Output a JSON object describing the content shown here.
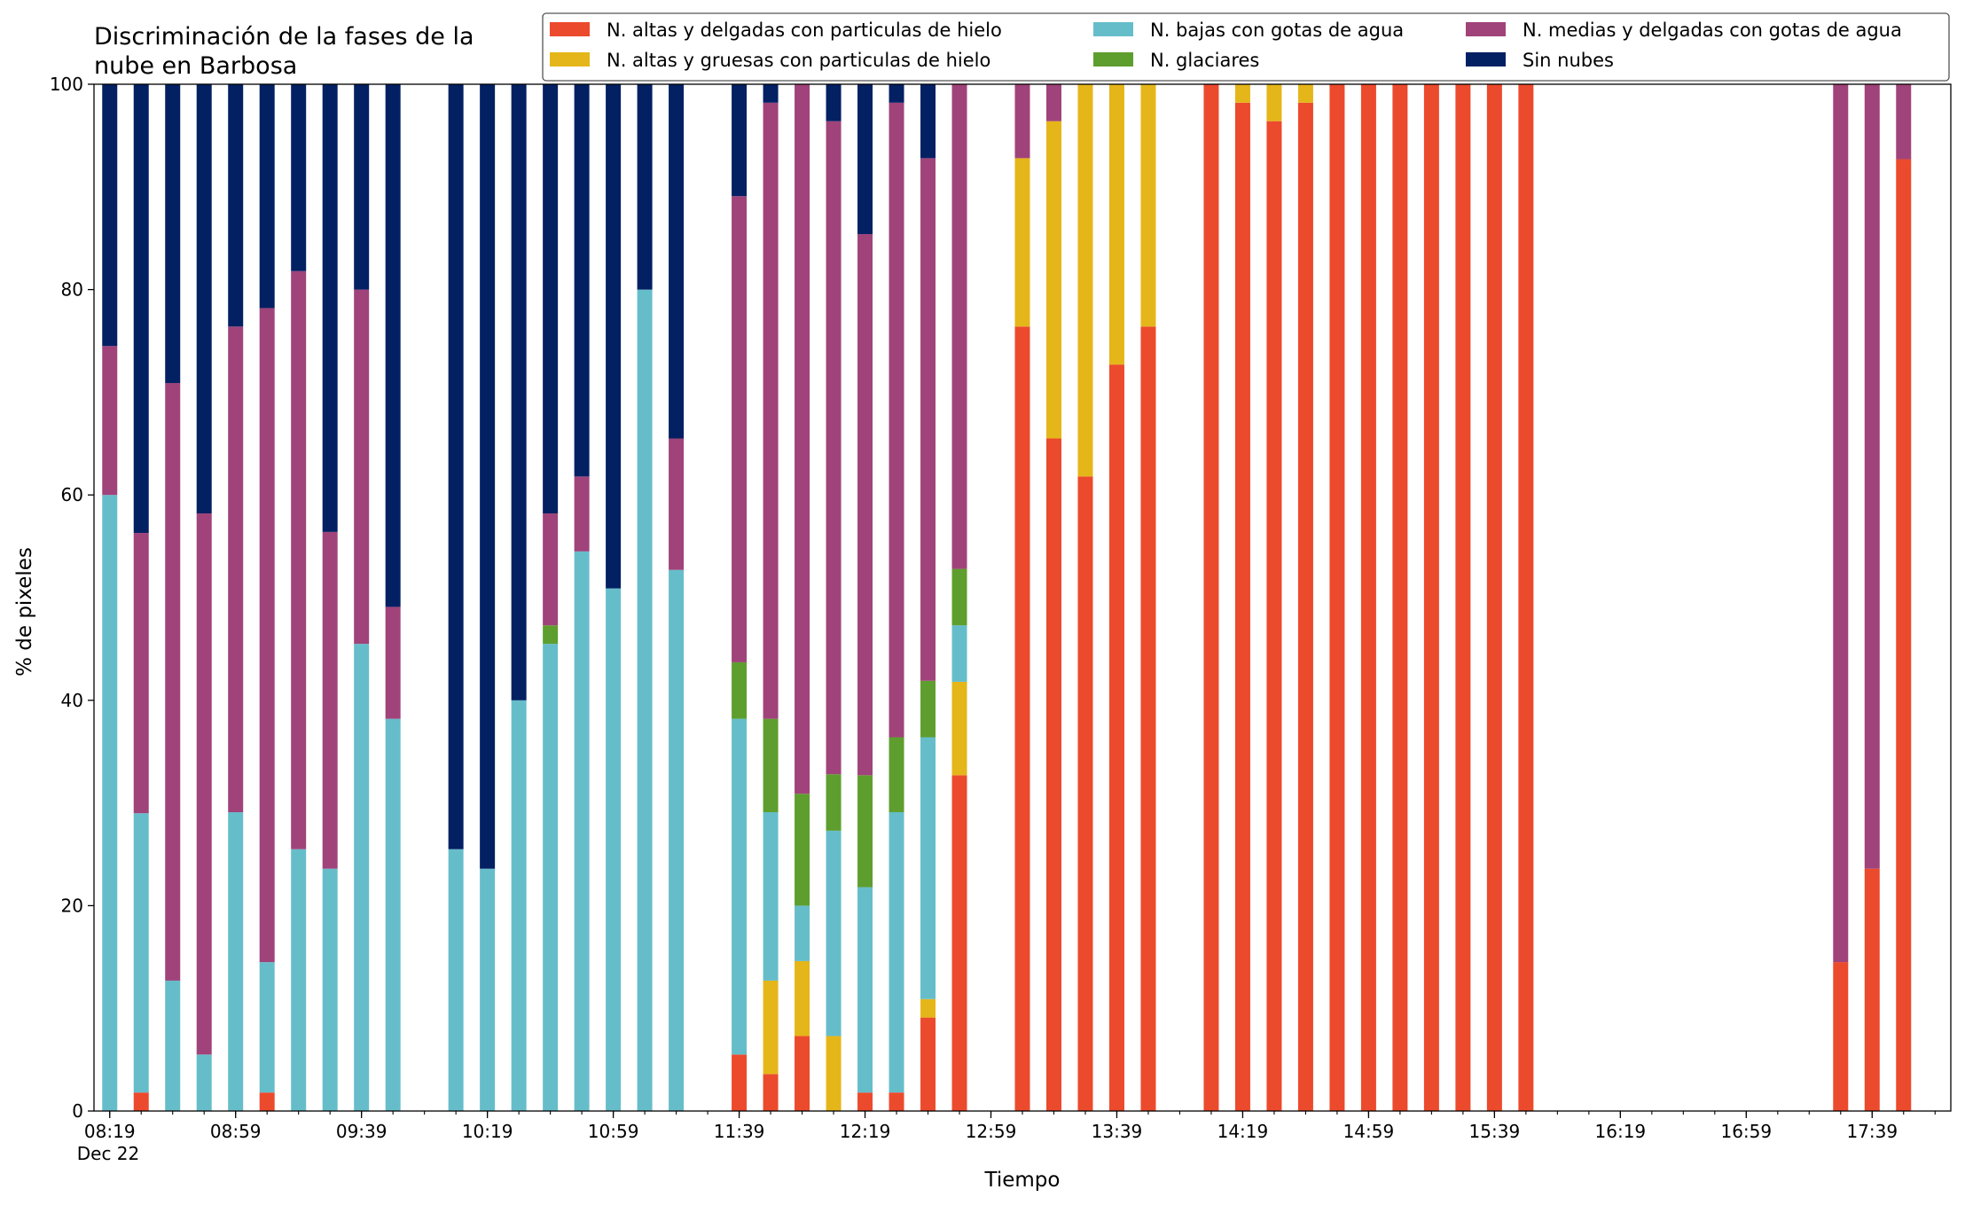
{
  "chart_data": {
    "type": "bar",
    "stacked": true,
    "title_lines": [
      "Discriminación de la fases de la",
      "nube en Barbosa"
    ],
    "xlabel": "Tiempo",
    "ylabel": "% de pixeles",
    "ylim": [
      0,
      100
    ],
    "yticks": [
      0,
      20,
      40,
      60,
      80,
      100
    ],
    "xlim": [
      -0.5,
      58.5
    ],
    "xtick_labels": [
      {
        "at": 0,
        "label": "08:19",
        "sub": "Dec 22"
      },
      {
        "at": 4,
        "label": "08:59"
      },
      {
        "at": 8,
        "label": "09:39"
      },
      {
        "at": 12,
        "label": "10:19"
      },
      {
        "at": 16,
        "label": "10:59"
      },
      {
        "at": 20,
        "label": "11:39"
      },
      {
        "at": 24,
        "label": "12:19"
      },
      {
        "at": 28,
        "label": "12:59"
      },
      {
        "at": 32,
        "label": "13:39"
      },
      {
        "at": 36,
        "label": "14:19"
      },
      {
        "at": 40,
        "label": "14:59"
      },
      {
        "at": 44,
        "label": "15:39"
      },
      {
        "at": 48,
        "label": "16:19"
      },
      {
        "at": 52,
        "label": "16:59"
      },
      {
        "at": 56,
        "label": "17:39"
      }
    ],
    "legend_placement": "top-right",
    "stack_order": [
      "altas_delgadas",
      "altas_gruesas",
      "bajas",
      "glaciares",
      "medias",
      "sin_nubes"
    ],
    "legend_order": [
      "altas_delgadas",
      "altas_gruesas",
      "bajas",
      "glaciares",
      "medias",
      "sin_nubes"
    ],
    "series_info": {
      "altas_delgadas": {
        "name": "N. altas y delgadas con particulas de hielo",
        "color": "#ec4a2c"
      },
      "altas_gruesas": {
        "name": "N. altas y gruesas con particulas de hielo",
        "color": "#e5b619"
      },
      "bajas": {
        "name": "N. bajas con gotas de agua",
        "color": "#66bdca"
      },
      "glaciares": {
        "name": "N. glaciares",
        "color": "#5e9e2e"
      },
      "medias": {
        "name": "N. medias y delgadas con gotas de agua",
        "color": "#a0437a"
      },
      "sin_nubes": {
        "name": "Sin nubes",
        "color": "#032063"
      }
    },
    "bars": [
      {
        "x": 0,
        "altas_delgadas": 0,
        "altas_gruesas": 0,
        "bajas": 60,
        "glaciares": 0,
        "medias": 14.5,
        "sin_nubes": 25.5
      },
      {
        "x": 1,
        "altas_delgadas": 1.8,
        "altas_gruesas": 0,
        "bajas": 27.2,
        "glaciares": 0,
        "medias": 27.3,
        "sin_nubes": 43.7
      },
      {
        "x": 2,
        "altas_delgadas": 0,
        "altas_gruesas": 0,
        "bajas": 12.7,
        "glaciares": 0,
        "medias": 58.2,
        "sin_nubes": 29.1
      },
      {
        "x": 3,
        "altas_delgadas": 0,
        "altas_gruesas": 0,
        "bajas": 5.5,
        "glaciares": 0,
        "medias": 52.7,
        "sin_nubes": 41.8
      },
      {
        "x": 4,
        "altas_delgadas": 0,
        "altas_gruesas": 0,
        "bajas": 29.1,
        "glaciares": 0,
        "medias": 47.3,
        "sin_nubes": 23.6
      },
      {
        "x": 5,
        "altas_delgadas": 1.8,
        "altas_gruesas": 0,
        "bajas": 12.7,
        "glaciares": 0,
        "medias": 63.7,
        "sin_nubes": 21.8
      },
      {
        "x": 6,
        "altas_delgadas": 0,
        "altas_gruesas": 0,
        "bajas": 25.5,
        "glaciares": 0,
        "medias": 56.3,
        "sin_nubes": 18.2
      },
      {
        "x": 7,
        "altas_delgadas": 0,
        "altas_gruesas": 0,
        "bajas": 23.6,
        "glaciares": 0,
        "medias": 32.8,
        "sin_nubes": 43.6
      },
      {
        "x": 8,
        "altas_delgadas": 0,
        "altas_gruesas": 0,
        "bajas": 45.5,
        "glaciares": 0,
        "medias": 34.5,
        "sin_nubes": 20.0
      },
      {
        "x": 9,
        "altas_delgadas": 0,
        "altas_gruesas": 0,
        "bajas": 38.2,
        "glaciares": 0,
        "medias": 10.9,
        "sin_nubes": 50.9
      },
      {
        "x": 11,
        "altas_delgadas": 0,
        "altas_gruesas": 0,
        "bajas": 25.5,
        "glaciares": 0,
        "medias": 0,
        "sin_nubes": 74.5
      },
      {
        "x": 12,
        "altas_delgadas": 0,
        "altas_gruesas": 0,
        "bajas": 23.6,
        "glaciares": 0,
        "medias": 0,
        "sin_nubes": 76.4
      },
      {
        "x": 13,
        "altas_delgadas": 0,
        "altas_gruesas": 0,
        "bajas": 40.0,
        "glaciares": 0,
        "medias": 0,
        "sin_nubes": 60.0
      },
      {
        "x": 14,
        "altas_delgadas": 0,
        "altas_gruesas": 0,
        "bajas": 45.5,
        "glaciares": 1.8,
        "medias": 10.9,
        "sin_nubes": 41.8
      },
      {
        "x": 15,
        "altas_delgadas": 0,
        "altas_gruesas": 0,
        "bajas": 54.5,
        "glaciares": 0,
        "medias": 7.3,
        "sin_nubes": 38.2
      },
      {
        "x": 16,
        "altas_delgadas": 0,
        "altas_gruesas": 0,
        "bajas": 50.9,
        "glaciares": 0,
        "medias": 0,
        "sin_nubes": 49.1
      },
      {
        "x": 17,
        "altas_delgadas": 0,
        "altas_gruesas": 0,
        "bajas": 80.0,
        "glaciares": 0,
        "medias": 0,
        "sin_nubes": 20.0
      },
      {
        "x": 18,
        "altas_delgadas": 0,
        "altas_gruesas": 0,
        "bajas": 52.7,
        "glaciares": 0,
        "medias": 12.8,
        "sin_nubes": 34.5
      },
      {
        "x": 20,
        "altas_delgadas": 5.5,
        "altas_gruesas": 0,
        "bajas": 32.7,
        "glaciares": 5.5,
        "medias": 45.4,
        "sin_nubes": 10.9
      },
      {
        "x": 21,
        "altas_delgadas": 3.6,
        "altas_gruesas": 9.1,
        "bajas": 16.4,
        "glaciares": 9.1,
        "medias": 60.0,
        "sin_nubes": 1.8
      },
      {
        "x": 22,
        "altas_delgadas": 7.3,
        "altas_gruesas": 7.3,
        "bajas": 5.4,
        "glaciares": 10.9,
        "medias": 69.1,
        "sin_nubes": 0
      },
      {
        "x": 23,
        "altas_delgadas": 0,
        "altas_gruesas": 7.3,
        "bajas": 20.0,
        "glaciares": 5.5,
        "medias": 63.6,
        "sin_nubes": 3.6
      },
      {
        "x": 24,
        "altas_delgadas": 1.8,
        "altas_gruesas": 0,
        "bajas": 20.0,
        "glaciares": 10.9,
        "medias": 52.7,
        "sin_nubes": 14.6
      },
      {
        "x": 25,
        "altas_delgadas": 1.8,
        "altas_gruesas": 0,
        "bajas": 27.3,
        "glaciares": 7.3,
        "medias": 61.8,
        "sin_nubes": 1.8
      },
      {
        "x": 26,
        "altas_delgadas": 9.1,
        "altas_gruesas": 1.8,
        "bajas": 25.5,
        "glaciares": 5.5,
        "medias": 50.9,
        "sin_nubes": 7.2
      },
      {
        "x": 27,
        "altas_delgadas": 32.7,
        "altas_gruesas": 9.1,
        "bajas": 5.5,
        "glaciares": 5.5,
        "medias": 47.2,
        "sin_nubes": 0
      },
      {
        "x": 29,
        "altas_delgadas": 76.4,
        "altas_gruesas": 16.4,
        "bajas": 0,
        "glaciares": 0,
        "medias": 7.2,
        "sin_nubes": 0
      },
      {
        "x": 30,
        "altas_delgadas": 65.5,
        "altas_gruesas": 30.9,
        "bajas": 0,
        "glaciares": 0,
        "medias": 3.6,
        "sin_nubes": 0
      },
      {
        "x": 31,
        "altas_delgadas": 61.8,
        "altas_gruesas": 38.2,
        "bajas": 0,
        "glaciares": 0,
        "medias": 0,
        "sin_nubes": 0
      },
      {
        "x": 32,
        "altas_delgadas": 72.7,
        "altas_gruesas": 27.3,
        "bajas": 0,
        "glaciares": 0,
        "medias": 0,
        "sin_nubes": 0
      },
      {
        "x": 33,
        "altas_delgadas": 76.4,
        "altas_gruesas": 23.6,
        "bajas": 0,
        "glaciares": 0,
        "medias": 0,
        "sin_nubes": 0
      },
      {
        "x": 35,
        "altas_delgadas": 100,
        "altas_gruesas": 0,
        "bajas": 0,
        "glaciares": 0,
        "medias": 0,
        "sin_nubes": 0
      },
      {
        "x": 36,
        "altas_delgadas": 98.2,
        "altas_gruesas": 1.8,
        "bajas": 0,
        "glaciares": 0,
        "medias": 0,
        "sin_nubes": 0
      },
      {
        "x": 37,
        "altas_delgadas": 96.4,
        "altas_gruesas": 3.6,
        "bajas": 0,
        "glaciares": 0,
        "medias": 0,
        "sin_nubes": 0
      },
      {
        "x": 38,
        "altas_delgadas": 98.2,
        "altas_gruesas": 1.8,
        "bajas": 0,
        "glaciares": 0,
        "medias": 0,
        "sin_nubes": 0
      },
      {
        "x": 39,
        "altas_delgadas": 100,
        "altas_gruesas": 0,
        "bajas": 0,
        "glaciares": 0,
        "medias": 0,
        "sin_nubes": 0
      },
      {
        "x": 40,
        "altas_delgadas": 100,
        "altas_gruesas": 0,
        "bajas": 0,
        "glaciares": 0,
        "medias": 0,
        "sin_nubes": 0
      },
      {
        "x": 41,
        "altas_delgadas": 100,
        "altas_gruesas": 0,
        "bajas": 0,
        "glaciares": 0,
        "medias": 0,
        "sin_nubes": 0
      },
      {
        "x": 42,
        "altas_delgadas": 100,
        "altas_gruesas": 0,
        "bajas": 0,
        "glaciares": 0,
        "medias": 0,
        "sin_nubes": 0
      },
      {
        "x": 43,
        "altas_delgadas": 100,
        "altas_gruesas": 0,
        "bajas": 0,
        "glaciares": 0,
        "medias": 0,
        "sin_nubes": 0
      },
      {
        "x": 44,
        "altas_delgadas": 100,
        "altas_gruesas": 0,
        "bajas": 0,
        "glaciares": 0,
        "medias": 0,
        "sin_nubes": 0
      },
      {
        "x": 45,
        "altas_delgadas": 100,
        "altas_gruesas": 0,
        "bajas": 0,
        "glaciares": 0,
        "medias": 0,
        "sin_nubes": 0
      },
      {
        "x": 55,
        "altas_delgadas": 14.5,
        "altas_gruesas": 0,
        "bajas": 0,
        "glaciares": 0,
        "medias": 85.5,
        "sin_nubes": 0
      },
      {
        "x": 56,
        "altas_delgadas": 23.6,
        "altas_gruesas": 0,
        "bajas": 0,
        "glaciares": 0,
        "medias": 76.4,
        "sin_nubes": 0
      },
      {
        "x": 57,
        "altas_delgadas": 92.7,
        "altas_gruesas": 0,
        "bajas": 0,
        "glaciares": 0,
        "medias": 7.3,
        "sin_nubes": 0
      }
    ]
  }
}
